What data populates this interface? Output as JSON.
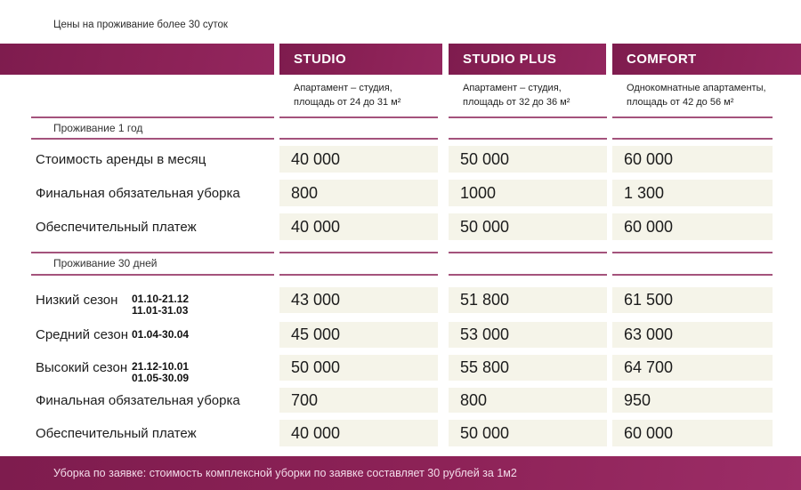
{
  "title": "Цены на проживание более 30 суток",
  "columns": [
    {
      "name": "STUDIO",
      "description_line1": "Апартамент – студия,",
      "description_line2": "площадь от 24 до 31 м²"
    },
    {
      "name": "STUDIO PLUS",
      "description_line1": "Апартамент – студия,",
      "description_line2": "площадь от 32 до 36 м²"
    },
    {
      "name": "COMFORT",
      "description_line1": "Однокомнатные апартаменты,",
      "description_line2": "площадь от 42 до 56 м²"
    }
  ],
  "sections": [
    {
      "header": "Проживание 1 год",
      "rows": [
        {
          "label": "Стоимость аренды в месяц",
          "dates": [],
          "values": [
            "40 000",
            "50 000",
            "60 000"
          ]
        },
        {
          "label": "Финальная обязательная уборка",
          "dates": [],
          "values": [
            "800",
            "1000",
            "1 300"
          ]
        },
        {
          "label": "Обеспечительный платеж",
          "dates": [],
          "values": [
            "40 000",
            "50 000",
            "60 000"
          ]
        }
      ]
    },
    {
      "header": "Проживание 30 дней",
      "rows": [
        {
          "label": "Низкий сезон",
          "dates": [
            "01.10-21.12",
            "11.01-31.03"
          ],
          "values": [
            "43 000",
            "51 800",
            "61 500"
          ]
        },
        {
          "label": "Средний сезон",
          "dates": [
            "01.04-30.04"
          ],
          "values": [
            "45 000",
            "53 000",
            "63 000"
          ]
        },
        {
          "label": "Высокий сезон",
          "dates": [
            "21.12-10.01",
            "01.05-30.09"
          ],
          "values": [
            "50 000",
            "55 800",
            "64 700"
          ]
        },
        {
          "label": "Финальная обязательная уборка",
          "dates": [],
          "values": [
            "700",
            "800",
            "950"
          ]
        },
        {
          "label": "Обеспечительный платеж",
          "dates": [],
          "values": [
            "40 000",
            "50 000",
            "60 000"
          ]
        }
      ]
    }
  ],
  "footer": {
    "note": "Уборка по заявке:  стоимость комплексной уборки по заявке составляет 30 рублей за 1м2"
  },
  "colors": {
    "maroon": "#8b2156",
    "maroon_dark": "#7e1c4e",
    "maroon_light": "#9c2d67",
    "section_line": "#a4537c",
    "cell_background": "#f5f4e9",
    "footer_text": "#f3dcea"
  }
}
